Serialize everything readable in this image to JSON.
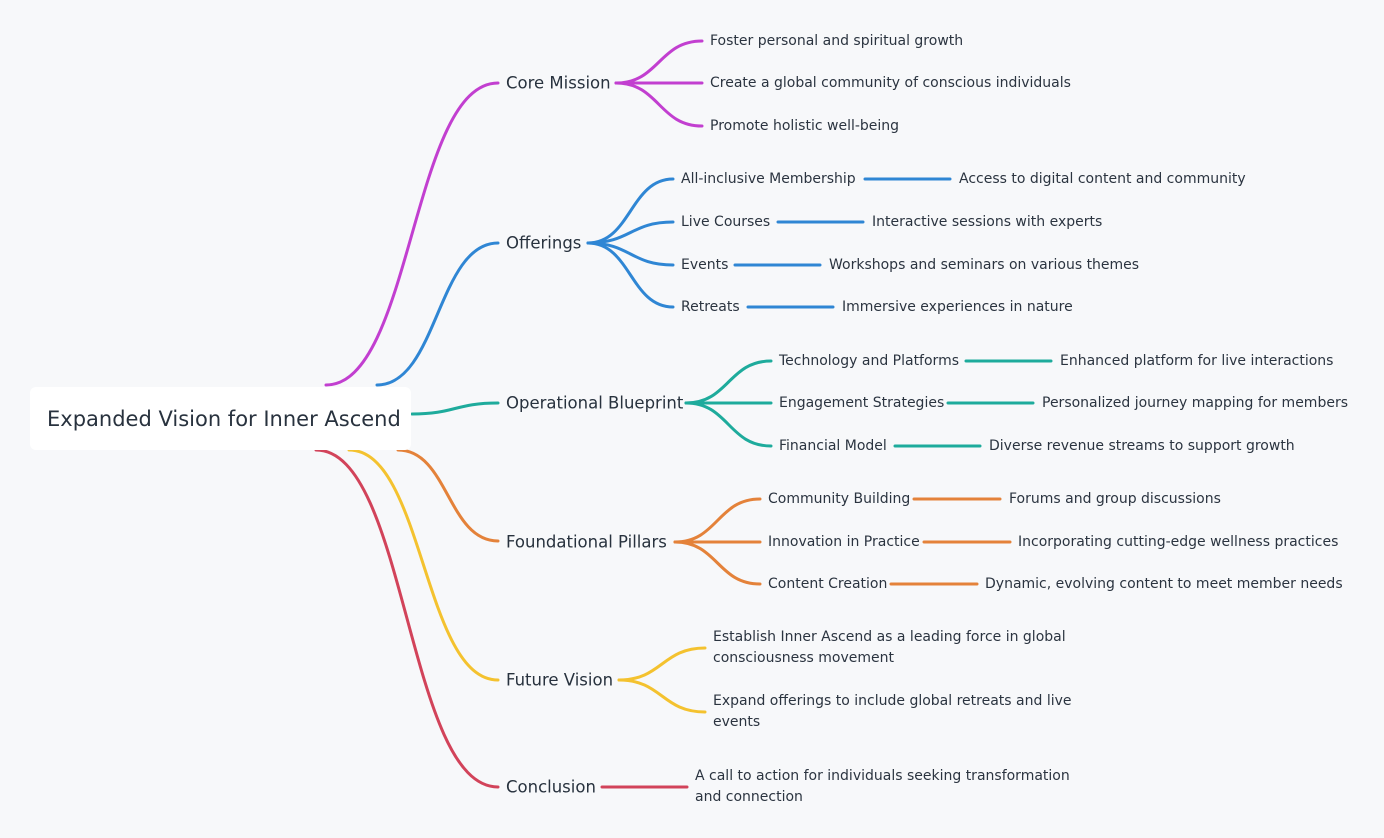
{
  "root": {
    "label": "Expanded Vision for Inner Ascend"
  },
  "branches": {
    "core_mission": {
      "label": "Core Mission",
      "color": "#c23fd0",
      "items": [
        "Foster personal and spiritual growth",
        "Create a global community of conscious individuals",
        "Promote holistic well-being"
      ]
    },
    "offerings": {
      "label": "Offerings",
      "color": "#2f86d4",
      "items": [
        {
          "label": "All-inclusive Membership",
          "detail": "Access to digital content and community"
        },
        {
          "label": "Live Courses",
          "detail": "Interactive sessions with experts"
        },
        {
          "label": "Events",
          "detail": "Workshops and seminars on various themes"
        },
        {
          "label": "Retreats",
          "detail": "Immersive experiences in nature"
        }
      ]
    },
    "operational_blueprint": {
      "label": "Operational Blueprint",
      "color": "#1eab9c",
      "items": [
        {
          "label": "Technology and Platforms",
          "detail": "Enhanced platform for live interactions"
        },
        {
          "label": "Engagement Strategies",
          "detail": "Personalized journey mapping for members"
        },
        {
          "label": "Financial Model",
          "detail": "Diverse revenue streams to support growth"
        }
      ]
    },
    "foundational_pillars": {
      "label": "Foundational Pillars",
      "color": "#e4823a",
      "items": [
        {
          "label": "Community Building",
          "detail": "Forums and group discussions"
        },
        {
          "label": "Innovation in Practice",
          "detail": "Incorporating cutting-edge wellness practices"
        },
        {
          "label": "Content Creation",
          "detail": "Dynamic, evolving content to meet member needs"
        }
      ]
    },
    "future_vision": {
      "label": "Future Vision",
      "color": "#f4c22f",
      "items": [
        "Establish Inner Ascend as a leading force in global consciousness movement",
        "Expand offerings to include global retreats and live events"
      ]
    },
    "conclusion": {
      "label": "Conclusion",
      "color": "#d2435a",
      "items": [
        "A call to action for individuals seeking transformation and connection"
      ]
    }
  }
}
